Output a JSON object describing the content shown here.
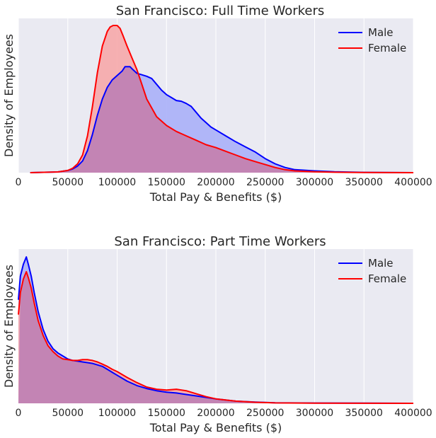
{
  "colors": {
    "axes_bg": "#eaeaf2",
    "grid": "#ffffff",
    "male": "#0000ff",
    "female": "#ff0000",
    "male_fill": "#aab0f8",
    "female_fill": "#f6a8aa",
    "overlap_fill": "#c384b4"
  },
  "chart_data": [
    {
      "type": "area",
      "title": "San Francisco: Full Time Workers",
      "xlabel": "Total Pay & Benefits ($)",
      "ylabel": "Density of Employees",
      "xlim": [
        0,
        400000
      ],
      "ylim": [
        0,
        1.0
      ],
      "y_ticks_shown": false,
      "grid": "vertical",
      "legend_position": "top-right",
      "xticks": [
        "0",
        "50000",
        "100000",
        "150000",
        "200000",
        "250000",
        "300000",
        "350000",
        "400000"
      ],
      "series": [
        {
          "name": "Male",
          "color": "#0000ff",
          "x": [
            12000,
            40000,
            50000,
            55000,
            60000,
            65000,
            70000,
            75000,
            80000,
            85000,
            90000,
            95000,
            100000,
            105000,
            108000,
            110000,
            113000,
            116000,
            120000,
            125000,
            130000,
            135000,
            140000,
            145000,
            150000,
            155000,
            160000,
            165000,
            170000,
            175000,
            180000,
            185000,
            190000,
            195000,
            200000,
            210000,
            220000,
            230000,
            240000,
            250000,
            260000,
            270000,
            280000,
            300000,
            320000,
            350000,
            400000
          ],
          "values": [
            0.0,
            0.005,
            0.015,
            0.025,
            0.045,
            0.08,
            0.15,
            0.26,
            0.39,
            0.5,
            0.58,
            0.63,
            0.66,
            0.69,
            0.72,
            0.72,
            0.72,
            0.7,
            0.675,
            0.665,
            0.655,
            0.64,
            0.6,
            0.56,
            0.53,
            0.51,
            0.49,
            0.485,
            0.47,
            0.45,
            0.41,
            0.37,
            0.34,
            0.31,
            0.29,
            0.25,
            0.21,
            0.175,
            0.14,
            0.095,
            0.06,
            0.035,
            0.02,
            0.012,
            0.006,
            0.002,
            0.0
          ]
        },
        {
          "name": "Female",
          "color": "#ff0000",
          "x": [
            12000,
            40000,
            50000,
            55000,
            60000,
            65000,
            70000,
            75000,
            80000,
            85000,
            90000,
            93000,
            96000,
            100000,
            103000,
            106000,
            110000,
            115000,
            120000,
            125000,
            130000,
            140000,
            150000,
            160000,
            170000,
            180000,
            190000,
            200000,
            210000,
            220000,
            230000,
            240000,
            250000,
            260000,
            270000,
            280000,
            300000,
            320000,
            350000,
            400000
          ],
          "values": [
            0.0,
            0.005,
            0.015,
            0.03,
            0.06,
            0.12,
            0.25,
            0.45,
            0.68,
            0.86,
            0.96,
            0.99,
            1.0,
            1.0,
            0.98,
            0.93,
            0.86,
            0.78,
            0.7,
            0.6,
            0.5,
            0.38,
            0.32,
            0.28,
            0.25,
            0.22,
            0.19,
            0.17,
            0.145,
            0.12,
            0.095,
            0.075,
            0.055,
            0.035,
            0.02,
            0.012,
            0.006,
            0.003,
            0.001,
            0.0
          ]
        }
      ]
    },
    {
      "type": "area",
      "title": "San Francisco: Part Time Workers",
      "xlabel": "Total Pay & Benefits ($)",
      "ylabel": "Density of Employees",
      "xlim": [
        0,
        400000
      ],
      "ylim": [
        0,
        1.0
      ],
      "y_ticks_shown": false,
      "grid": "vertical",
      "legend_position": "top-right",
      "xticks": [
        "0",
        "50000",
        "100000",
        "150000",
        "200000",
        "250000",
        "300000",
        "350000",
        "400000"
      ],
      "series": [
        {
          "name": "Male",
          "color": "#0000ff",
          "x": [
            0,
            2000,
            5000,
            8000,
            10000,
            13000,
            16000,
            20000,
            25000,
            30000,
            35000,
            40000,
            45000,
            50000,
            55000,
            60000,
            65000,
            70000,
            75000,
            80000,
            85000,
            90000,
            95000,
            100000,
            110000,
            120000,
            130000,
            140000,
            150000,
            160000,
            170000,
            180000,
            190000,
            200000,
            220000,
            240000,
            260000,
            300000,
            350000,
            400000
          ],
          "values": [
            0.7,
            0.86,
            0.94,
            0.99,
            0.94,
            0.86,
            0.75,
            0.62,
            0.5,
            0.42,
            0.37,
            0.34,
            0.32,
            0.3,
            0.29,
            0.285,
            0.28,
            0.275,
            0.27,
            0.26,
            0.25,
            0.23,
            0.21,
            0.19,
            0.15,
            0.12,
            0.1,
            0.085,
            0.075,
            0.07,
            0.06,
            0.05,
            0.04,
            0.03,
            0.015,
            0.008,
            0.004,
            0.002,
            0.001,
            0.0
          ]
        },
        {
          "name": "Female",
          "color": "#ff0000",
          "x": [
            0,
            2000,
            5000,
            8000,
            10000,
            13000,
            16000,
            20000,
            25000,
            30000,
            35000,
            40000,
            45000,
            50000,
            55000,
            60000,
            65000,
            70000,
            75000,
            80000,
            85000,
            90000,
            95000,
            100000,
            110000,
            120000,
            130000,
            140000,
            150000,
            160000,
            170000,
            180000,
            190000,
            200000,
            220000,
            240000,
            260000,
            300000,
            350000,
            400000
          ],
          "values": [
            0.6,
            0.75,
            0.84,
            0.89,
            0.85,
            0.78,
            0.68,
            0.56,
            0.46,
            0.39,
            0.35,
            0.32,
            0.3,
            0.295,
            0.29,
            0.29,
            0.295,
            0.295,
            0.29,
            0.28,
            0.265,
            0.25,
            0.23,
            0.215,
            0.175,
            0.14,
            0.11,
            0.095,
            0.09,
            0.095,
            0.085,
            0.065,
            0.045,
            0.03,
            0.015,
            0.007,
            0.003,
            0.001,
            0.0005,
            0.0
          ]
        }
      ]
    }
  ]
}
